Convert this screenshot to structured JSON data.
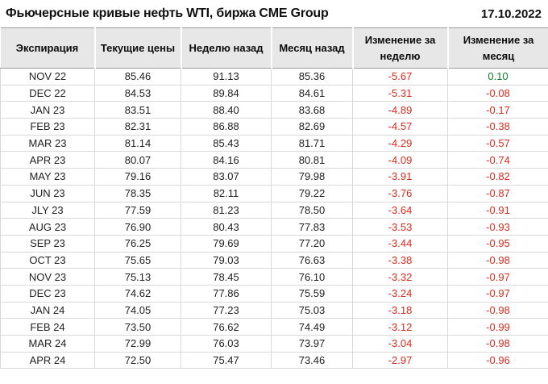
{
  "header": {
    "title": "Фьючерсные кривые нефть WTI, биржа CME Group",
    "date": "17.10.2022"
  },
  "table": {
    "columns": [
      "Экспирация",
      "Текущие цены",
      "Неделю назад",
      "Месяц назад",
      "Изменение за неделю",
      "Изменение за месяц"
    ],
    "rows": [
      [
        "NOV 22",
        "85.46",
        "91.13",
        "85.36",
        "-5.67",
        "0.10"
      ],
      [
        "DEC 22",
        "84.53",
        "89.84",
        "84.61",
        "-5.31",
        "-0.08"
      ],
      [
        "JAN 23",
        "83.51",
        "88.40",
        "83.68",
        "-4.89",
        "-0.17"
      ],
      [
        "FEB 23",
        "82.31",
        "86.88",
        "82.69",
        "-4.57",
        "-0.38"
      ],
      [
        "MAR 23",
        "81.14",
        "85.43",
        "81.71",
        "-4.29",
        "-0.57"
      ],
      [
        "APR 23",
        "80.07",
        "84.16",
        "80.81",
        "-4.09",
        "-0.74"
      ],
      [
        "MAY 23",
        "79.16",
        "83.07",
        "79.98",
        "-3.91",
        "-0.82"
      ],
      [
        "JUN 23",
        "78.35",
        "82.11",
        "79.22",
        "-3.76",
        "-0.87"
      ],
      [
        "JLY 23",
        "77.59",
        "81.23",
        "78.50",
        "-3.64",
        "-0.91"
      ],
      [
        "AUG 23",
        "76.90",
        "80.43",
        "77.83",
        "-3.53",
        "-0.93"
      ],
      [
        "SEP 23",
        "76.25",
        "79.69",
        "77.20",
        "-3.44",
        "-0.95"
      ],
      [
        "OCT 23",
        "75.65",
        "79.03",
        "76.63",
        "-3.38",
        "-0.98"
      ],
      [
        "NOV 23",
        "75.13",
        "78.45",
        "76.10",
        "-3.32",
        "-0.97"
      ],
      [
        "DEC 23",
        "74.62",
        "77.86",
        "75.59",
        "-3.24",
        "-0.97"
      ],
      [
        "JAN 24",
        "74.05",
        "77.23",
        "75.03",
        "-3.18",
        "-0.98"
      ],
      [
        "FEB 24",
        "73.50",
        "76.62",
        "74.49",
        "-3.12",
        "-0.99"
      ],
      [
        "MAR 24",
        "72.99",
        "76.03",
        "73.97",
        "-3.04",
        "-0.98"
      ],
      [
        "APR 24",
        "72.50",
        "75.47",
        "73.46",
        "-2.97",
        "-0.96"
      ]
    ],
    "change_columns": [
      4,
      5
    ]
  },
  "colors": {
    "negative": "#d92b1f",
    "positive": "#0e7d25",
    "header_bg": "#e7e7e7"
  }
}
